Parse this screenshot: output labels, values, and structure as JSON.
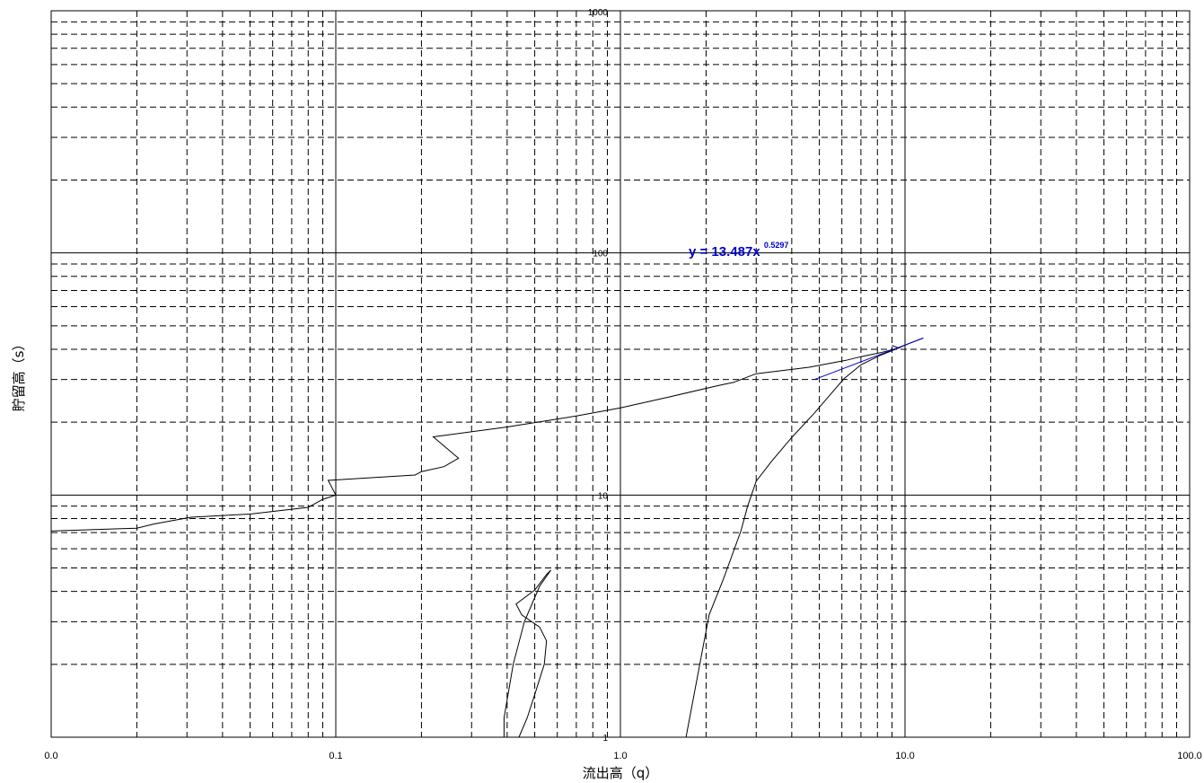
{
  "chart_data": {
    "type": "line",
    "xlabel": "流出高（q）",
    "ylabel": "貯留高（s）",
    "x_scale": "log",
    "y_scale": "log",
    "xlim": [
      0.01,
      100
    ],
    "ylim": [
      1,
      1000
    ],
    "grid": true,
    "x_ticks": [
      {
        "value": 0.01,
        "label": "0.0"
      },
      {
        "value": 0.1,
        "label": "0.1"
      },
      {
        "value": 1,
        "label": "1.0"
      },
      {
        "value": 10,
        "label": "10.0"
      },
      {
        "value": 100,
        "label": "100.0"
      }
    ],
    "y_ticks": [
      {
        "value": 1,
        "label": "1"
      },
      {
        "value": 10,
        "label": "10"
      },
      {
        "value": 100,
        "label": "100"
      },
      {
        "value": 1000,
        "label": "1000"
      }
    ],
    "annotation": {
      "prefix": "y = 13.487x ",
      "exponent": "0.5297",
      "color": "#0000cc"
    },
    "series": [
      {
        "color": "#000000",
        "points": [
          [
            0.01,
            7.1
          ],
          [
            0.02,
            7.3
          ],
          [
            0.023,
            7.6
          ],
          [
            0.031,
            8.1
          ],
          [
            0.05,
            8.35
          ],
          [
            0.08,
            8.9
          ],
          [
            0.09,
            9.6
          ],
          [
            0.1,
            10.0
          ],
          [
            0.094,
            11.5
          ],
          [
            0.19,
            12.1
          ],
          [
            0.2,
            12.5
          ],
          [
            0.24,
            13.1
          ],
          [
            0.27,
            14.2
          ],
          [
            0.22,
            17.4
          ],
          [
            0.4,
            19.1
          ],
          [
            0.7,
            21.2
          ],
          [
            1.0,
            22.9
          ],
          [
            1.5,
            25.5
          ],
          [
            2.2,
            28.3
          ],
          [
            2.5,
            29.2
          ],
          [
            3.0,
            31.7
          ],
          [
            4.6,
            33.7
          ],
          [
            6.2,
            36.0
          ],
          [
            7.0,
            37.3
          ],
          [
            8.2,
            38.7
          ],
          [
            9.5,
            40.5
          ],
          [
            9.0,
            41.5
          ]
        ]
      },
      {
        "color": "#000000",
        "points": [
          [
            1.7,
            1.0
          ],
          [
            1.9,
            2.0
          ],
          [
            2.05,
            3.2
          ],
          [
            2.3,
            4.5
          ],
          [
            2.65,
            7.1
          ],
          [
            2.8,
            9.0
          ],
          [
            3.0,
            11.4
          ],
          [
            3.4,
            13.8
          ],
          [
            4.0,
            17.3
          ],
          [
            4.8,
            21.8
          ],
          [
            5.6,
            26.9
          ],
          [
            6.1,
            30.2
          ],
          [
            7.0,
            34.5
          ],
          [
            8.2,
            37.8
          ],
          [
            9.5,
            40.5
          ],
          [
            10.5,
            42.6
          ],
          [
            11.6,
            44.5
          ]
        ]
      },
      {
        "color": "#000000",
        "points": [
          [
            0.39,
            1.0
          ],
          [
            0.39,
            1.2
          ],
          [
            0.42,
            2.0
          ],
          [
            0.46,
            3.0
          ],
          [
            0.52,
            4.2
          ],
          [
            0.57,
            4.9
          ],
          [
            0.55,
            4.7
          ],
          [
            0.5,
            4.05
          ],
          [
            0.43,
            3.55
          ],
          [
            0.45,
            3.2
          ],
          [
            0.52,
            2.85
          ],
          [
            0.55,
            2.5
          ],
          [
            0.54,
            2.0
          ],
          [
            0.5,
            1.5
          ],
          [
            0.47,
            1.2
          ],
          [
            0.44,
            1.0
          ]
        ]
      },
      {
        "color": "#0000cc",
        "points": [
          [
            4.8,
            30.0
          ],
          [
            11.6,
            44.5
          ]
        ]
      }
    ]
  }
}
